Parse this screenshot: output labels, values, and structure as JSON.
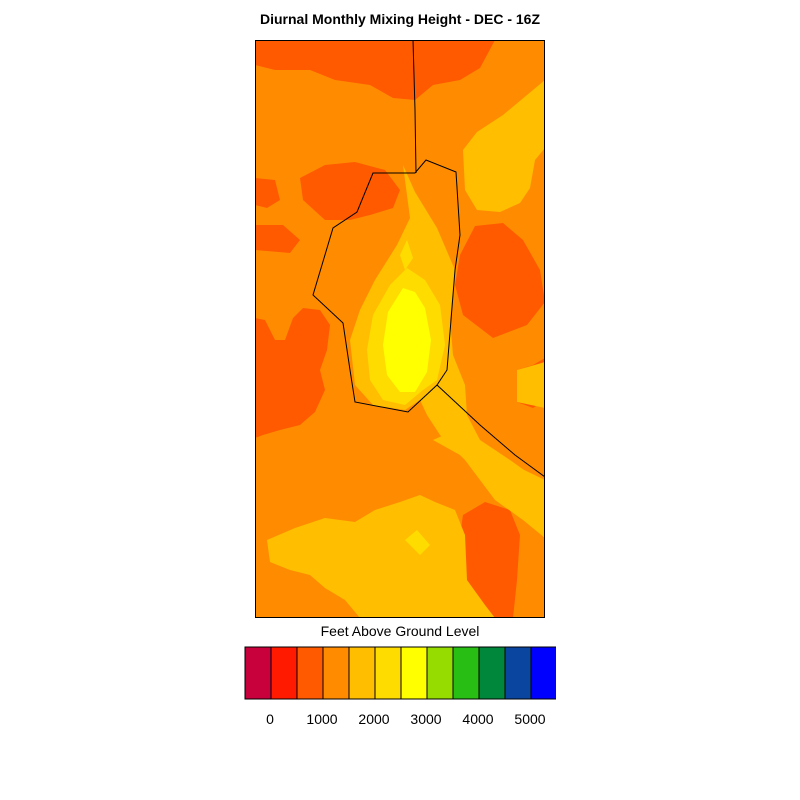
{
  "title": "Diurnal Monthly Mixing Height - DEC - 16Z",
  "legend": {
    "title": "Feet Above Ground Level",
    "colors": [
      "#c8003c",
      "#ff1a00",
      "#ff5a00",
      "#ff8c00",
      "#ffbe00",
      "#ffdc00",
      "#ffff00",
      "#96dc00",
      "#28be14",
      "#00873c",
      "#0a46a0",
      "#0000ff"
    ],
    "tick_labels": [
      "0",
      "1000",
      "2000",
      "3000",
      "4000",
      "5000"
    ]
  },
  "map": {
    "field_colors": {
      "orange_red": "#ff5a00",
      "orange": "#ff8c00",
      "light_orange": "#ffbe00",
      "gold": "#ffdc00",
      "yellow": "#ffff00"
    }
  }
}
